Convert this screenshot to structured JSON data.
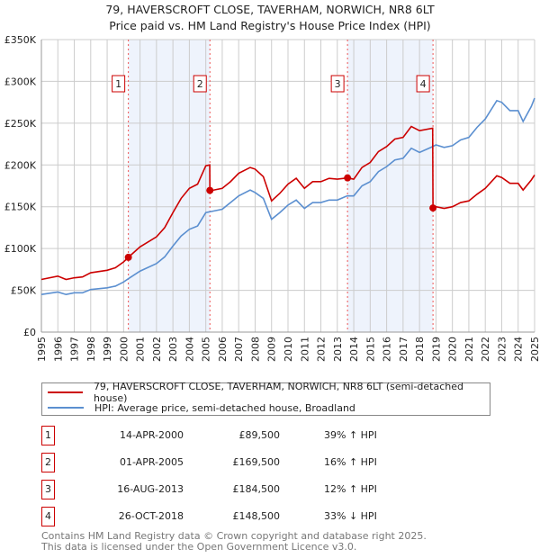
{
  "title_line1": "79, HAVERSCROFT CLOSE, TAVERHAM, NORWICH, NR8 6LT",
  "title_line2": "Price paid vs. HM Land Registry's House Price Index (HPI)",
  "legend": {
    "property": "79, HAVERSCROFT CLOSE, TAVERHAM, NORWICH, NR8 6LT (semi-detached house)",
    "hpi": "HPI: Average price, semi-detached house, Broadland"
  },
  "sales": [
    {
      "num": "1",
      "date": "14-APR-2000",
      "price": "£89,500",
      "hpi": "39% ↑ HPI",
      "x": 2000.29,
      "value": 89.5
    },
    {
      "num": "2",
      "date": "01-APR-2005",
      "price": "£169,500",
      "hpi": "16% ↑ HPI",
      "x": 2005.25,
      "value": 169.5
    },
    {
      "num": "3",
      "date": "16-AUG-2013",
      "price": "£184,500",
      "hpi": "12% ↑ HPI",
      "x": 2013.62,
      "value": 184.5
    },
    {
      "num": "4",
      "date": "26-OCT-2018",
      "price": "£148,500",
      "hpi": "33% ↓ HPI",
      "x": 2018.82,
      "value": 148.5
    }
  ],
  "footer_line1": "Contains HM Land Registry data © Crown copyright and database right 2025.",
  "footer_line2": "This data is licensed under the Open Government Licence v3.0.",
  "chart_data": {
    "type": "line",
    "title": "79, HAVERSCROFT CLOSE, TAVERHAM, NORWICH, NR8 6LT - Price paid vs. HM Land Registry's House Price Index (HPI)",
    "xlim": [
      1995,
      2025
    ],
    "ylim": [
      0,
      350
    ],
    "yunit": "£K",
    "yticks": [
      "£0",
      "£50K",
      "£100K",
      "£150K",
      "£200K",
      "£250K",
      "£300K",
      "£350K"
    ],
    "xticks": [
      "1995",
      "1996",
      "1997",
      "1998",
      "1999",
      "2000",
      "2001",
      "2002",
      "2003",
      "2004",
      "2005",
      "2006",
      "2007",
      "2008",
      "2009",
      "2010",
      "2011",
      "2012",
      "2013",
      "2014",
      "2015",
      "2016",
      "2017",
      "2018",
      "2019",
      "2020",
      "2021",
      "2022",
      "2023",
      "2024",
      "2025"
    ],
    "grid": true,
    "colors": {
      "property": "#cc0000",
      "hpi": "#5b8fd0",
      "shade": "#eef3fc",
      "grid": "#cccccc"
    },
    "shaded_ranges": [
      [
        2000.29,
        2005.25
      ],
      [
        2013.62,
        2018.82
      ]
    ],
    "series": [
      {
        "name": "79, HAVERSCROFT CLOSE, TAVERHAM, NORWICH, NR8 6LT (semi-detached house)",
        "x": [
          1995,
          1996,
          1996.5,
          1997,
          1997.5,
          1998,
          1999,
          1999.5,
          2000,
          2000.29,
          2001,
          2002,
          2002.5,
          2003,
          2003.5,
          2004,
          2004.5,
          2005,
          2005.24,
          2005.25,
          2005.5,
          2006,
          2006.5,
          2007,
          2007.7,
          2008,
          2008.5,
          2009,
          2009.5,
          2010,
          2010.5,
          2011,
          2011.5,
          2012,
          2012.5,
          2013,
          2013.62,
          2014,
          2014.5,
          2015,
          2015.5,
          2016,
          2016.5,
          2017,
          2017.5,
          2018,
          2018.8,
          2018.82,
          2019,
          2019.5,
          2020,
          2020.5,
          2021,
          2021.5,
          2022,
          2022.7,
          2023,
          2023.5,
          2024,
          2024.3,
          2024.8,
          2025
        ],
        "values": [
          63,
          67,
          63,
          65,
          66,
          71,
          74,
          77,
          84,
          89.5,
          102,
          114,
          125,
          143,
          160,
          172,
          177,
          199,
          200,
          169.5,
          170,
          172,
          180,
          190,
          197,
          195,
          186,
          157,
          166,
          177,
          184,
          172,
          180,
          180,
          184,
          183,
          184.5,
          183,
          197,
          203,
          216,
          222,
          231,
          233,
          246,
          241,
          244,
          148.5,
          150,
          148,
          150,
          155,
          157,
          165,
          172,
          187,
          185,
          178,
          178,
          170,
          182,
          188
        ]
      },
      {
        "name": "HPI: Average price, semi-detached house, Broadland",
        "x": [
          1995,
          1996,
          1996.5,
          1997,
          1997.5,
          1998,
          1999,
          1999.5,
          2000,
          2000.3,
          2001,
          2002,
          2002.5,
          2003,
          2003.5,
          2004,
          2004.5,
          2005,
          2005.5,
          2006,
          2006.5,
          2007,
          2007.7,
          2008,
          2008.5,
          2009,
          2009.5,
          2010,
          2010.5,
          2011,
          2011.5,
          2012,
          2012.5,
          2013,
          2013.6,
          2014,
          2014.5,
          2015,
          2015.5,
          2016,
          2016.5,
          2017,
          2017.5,
          2018,
          2018.8,
          2019,
          2019.5,
          2020,
          2020.5,
          2021,
          2021.5,
          2022,
          2022.7,
          2023,
          2023.5,
          2024,
          2024.3,
          2024.8,
          2025
        ],
        "values": [
          45,
          48,
          45,
          47,
          47,
          51,
          53,
          55,
          60,
          64,
          73,
          82,
          90,
          103,
          115,
          123,
          127,
          143,
          145,
          147,
          155,
          163,
          170,
          167,
          160,
          135,
          143,
          152,
          158,
          148,
          155,
          155,
          158,
          158,
          163,
          163,
          175,
          180,
          192,
          198,
          206,
          208,
          220,
          215,
          222,
          224,
          221,
          223,
          230,
          233,
          245,
          255,
          277,
          275,
          265,
          265,
          252,
          270,
          280
        ]
      }
    ]
  }
}
